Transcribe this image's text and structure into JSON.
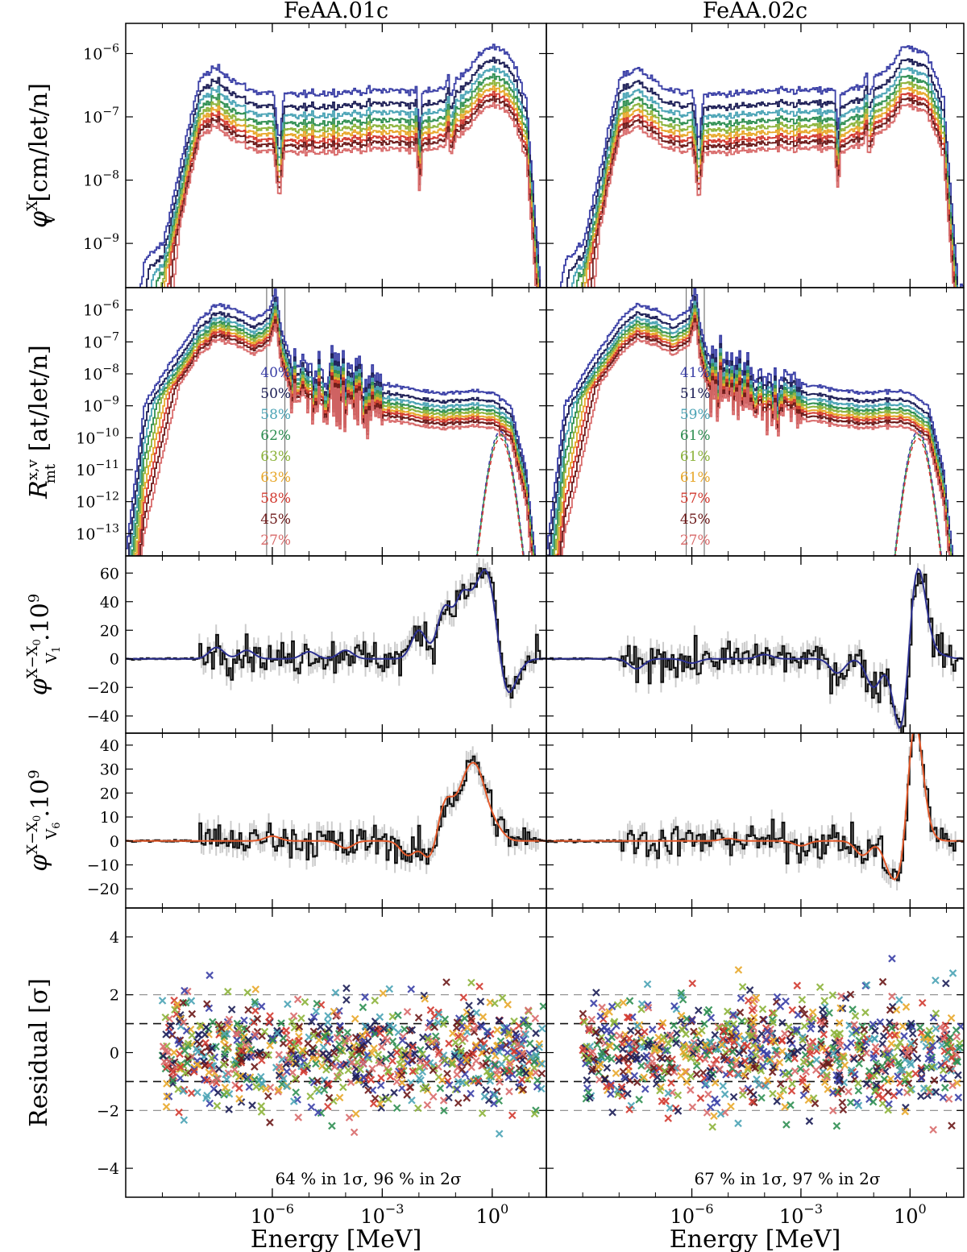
{
  "chart_data": {
    "type": "line",
    "columns": [
      "FeAA.01c",
      "FeAA.02c"
    ],
    "x_axis": {
      "label": "Energy [MeV]",
      "scale": "log",
      "ticks": [
        {
          "value": 1e-06,
          "base": "10",
          "exp": "−6"
        },
        {
          "value": 0.001,
          "base": "10",
          "exp": "−3"
        },
        {
          "value": 1,
          "base": "10",
          "exp": "0"
        }
      ],
      "xlim": [
        1e-10,
        30
      ]
    },
    "series_colors": [
      "#3a3fa6",
      "#1b1d55",
      "#4aa3b5",
      "#2f8f52",
      "#8cb33a",
      "#e8a72a",
      "#d23a30",
      "#6b1818",
      "#d86a6a"
    ],
    "panels": [
      {
        "id": "flux",
        "ylabel": "φ_V^X [cm/let/n]",
        "ylabel_main": "φ",
        "ylabel_sup": "X",
        "ylabel_sub": "V",
        "ylabel_rest": " [cm/let/n]",
        "scale": "log",
        "ylim": [
          2e-10,
          3e-06
        ],
        "yticks": [
          {
            "value": 1e-09,
            "base": "10",
            "exp": "−9"
          },
          {
            "value": 1e-08,
            "base": "10",
            "exp": "−8"
          },
          {
            "value": 1e-07,
            "base": "10",
            "exp": "−7"
          },
          {
            "value": 1e-06,
            "base": "10",
            "exp": "−6"
          }
        ],
        "series_scale": [
          1.0,
          0.62,
          0.45,
          0.34,
          0.27,
          0.22,
          0.18,
          0.15,
          0.12
        ],
        "base_curve": [
          [
            1e-10,
            3e-10
          ],
          [
            1e-09,
            1e-09
          ],
          [
            1e-08,
            4e-07
          ],
          [
            3e-08,
            6e-07
          ],
          [
            1e-07,
            3.5e-07
          ],
          [
            3e-07,
            2.5e-07
          ],
          [
            1e-06,
            2.4e-07
          ],
          [
            1.5e-06,
            4e-08
          ],
          [
            2e-06,
            2.2e-07
          ],
          [
            1e-05,
            2.3e-07
          ],
          [
            0.0001,
            2.5e-07
          ],
          [
            0.001,
            2.6e-07
          ],
          [
            0.008,
            2.6e-07
          ],
          [
            0.01,
            5e-08
          ],
          [
            0.012,
            2.4e-07
          ],
          [
            0.05,
            3e-07
          ],
          [
            0.06,
            5e-07
          ],
          [
            0.07,
            1.8e-07
          ],
          [
            0.1,
            4e-07
          ],
          [
            0.3,
            7e-07
          ],
          [
            0.6,
            1.2e-06
          ],
          [
            1,
            1.3e-06
          ],
          [
            3,
            9e-07
          ],
          [
            8,
            2e-07
          ],
          [
            20,
            2e-10
          ]
        ]
      },
      {
        "id": "reaction",
        "ylabel": "R_mt^{x,v} [at/let/n]",
        "ylabel_main": "R",
        "ylabel_sup": "x,v",
        "ylabel_sub": "mt",
        "ylabel_rest": " [at/let/n]",
        "scale": "log",
        "ylim": [
          2e-14,
          5e-06
        ],
        "yticks": [
          {
            "value": 1e-13,
            "base": "10",
            "exp": "−13"
          },
          {
            "value": 1e-12,
            "base": "10",
            "exp": "−12"
          },
          {
            "value": 1e-11,
            "base": "10",
            "exp": "−11"
          },
          {
            "value": 1e-10,
            "base": "10",
            "exp": "−10"
          },
          {
            "value": 1e-09,
            "base": "10",
            "exp": "−9"
          },
          {
            "value": 1e-08,
            "base": "10",
            "exp": "−8"
          },
          {
            "value": 1e-07,
            "base": "10",
            "exp": "−7"
          },
          {
            "value": 1e-06,
            "base": "10",
            "exp": "−6"
          }
        ],
        "series_scale": [
          1.0,
          0.55,
          0.38,
          0.28,
          0.22,
          0.17,
          0.14,
          0.11,
          0.08
        ],
        "base_curve": [
          [
            1e-10,
            1e-12
          ],
          [
            3e-10,
            1e-09
          ],
          [
            1e-09,
            1e-08
          ],
          [
            1e-08,
            5e-07
          ],
          [
            3e-08,
            1.5e-06
          ],
          [
            1e-07,
            1e-06
          ],
          [
            3e-07,
            5e-07
          ],
          [
            8e-07,
            1e-06
          ],
          [
            1.2e-06,
            5e-06
          ],
          [
            1.6e-06,
            3e-07
          ],
          [
            3e-06,
            3e-08
          ],
          [
            1e-05,
            2e-08
          ],
          [
            3e-05,
            1.5e-08
          ],
          [
            0.0001,
            1e-08
          ],
          [
            0.001,
            5e-09
          ],
          [
            0.01,
            3e-09
          ],
          [
            0.05,
            2.5e-09
          ],
          [
            0.3,
            3e-09
          ],
          [
            1,
            2.5e-09
          ],
          [
            3,
            1e-09
          ],
          [
            8,
            1e-11
          ],
          [
            15,
            1e-14
          ]
        ],
        "resonance_band": [
          7e-07,
          2.2e-06
        ],
        "percentages": [
          [
            "40%",
            "50%",
            "58%",
            "62%",
            "63%",
            "63%",
            "58%",
            "45%",
            "27%"
          ],
          [
            "41%",
            "51%",
            "59%",
            "61%",
            "61%",
            "61%",
            "57%",
            "45%",
            "27%"
          ]
        ]
      },
      {
        "id": "diff_v1",
        "ylabel": "φ_V1^{X−X0}.10^9",
        "ylabel_main": "φ",
        "ylabel_sup": "X−X",
        "ylabel_sup_sub": "0",
        "ylabel_sub": "V",
        "ylabel_sub_sub": "1",
        "ylabel_rest": ".10",
        "ylabel_rest_sup": "9",
        "scale": "linear",
        "ylim": [
          -52,
          72
        ],
        "yticks": [
          -40,
          -20,
          0,
          20,
          40,
          60
        ],
        "model_color": "#2b2f8f",
        "peaks": [
          [
            [
              3e-08,
              8
            ],
            [
              2e-07,
              6
            ],
            [
              1e-05,
              5
            ],
            [
              0.0001,
              6
            ],
            [
              0.01,
              20
            ],
            [
              0.05,
              35
            ],
            [
              0.15,
              40
            ],
            [
              0.35,
              30
            ],
            [
              0.7,
              45
            ],
            [
              1.2,
              15
            ],
            [
              2.5,
              -25
            ],
            [
              5,
              -5
            ]
          ],
          [
            [
              3e-08,
              -7
            ],
            [
              1e-06,
              -3
            ],
            [
              0.0001,
              3
            ],
            [
              0.01,
              -10
            ],
            [
              0.1,
              -20
            ],
            [
              0.5,
              -35
            ],
            [
              0.8,
              -43
            ],
            [
              1.1,
              50
            ],
            [
              1.8,
              40
            ],
            [
              3,
              8
            ],
            [
              8,
              2
            ]
          ]
        ]
      },
      {
        "id": "diff_v6",
        "ylabel": "φ_V6^{X−X0}.10^9",
        "ylabel_main": "φ",
        "ylabel_sup": "X−X",
        "ylabel_sup_sub": "0",
        "ylabel_sub": "V",
        "ylabel_sub_sub": "6",
        "ylabel_rest": ".10",
        "ylabel_rest_sup": "9",
        "scale": "linear",
        "ylim": [
          -28,
          45
        ],
        "yticks": [
          -20,
          -10,
          0,
          10,
          20,
          30,
          40
        ],
        "model_color": "#e2592a",
        "peaks": [
          [
            [
              1e-06,
              2
            ],
            [
              0.0001,
              -3
            ],
            [
              0.005,
              -6
            ],
            [
              0.02,
              -8
            ],
            [
              0.05,
              15
            ],
            [
              0.1,
              8
            ],
            [
              0.2,
              20
            ],
            [
              0.4,
              22
            ],
            [
              0.8,
              8
            ],
            [
              1.5,
              3
            ]
          ],
          [
            [
              1e-05,
              1
            ],
            [
              0.001,
              -2
            ],
            [
              0.05,
              -6
            ],
            [
              0.3,
              -12
            ],
            [
              0.7,
              -20
            ],
            [
              1.1,
              36
            ],
            [
              1.6,
              25
            ],
            [
              3,
              2
            ]
          ]
        ]
      },
      {
        "id": "residual",
        "ylabel": "Residual [σ]",
        "scale": "linear",
        "ylim": [
          -5,
          5
        ],
        "yticks": [
          -4,
          -2,
          0,
          2,
          4
        ],
        "marker": "x",
        "bands": [
          -2,
          -1,
          1,
          2
        ],
        "stats": [
          "64 % in 1σ, 96 % in 2σ",
          "67 % in 1σ, 97 % in 2σ"
        ]
      }
    ]
  }
}
